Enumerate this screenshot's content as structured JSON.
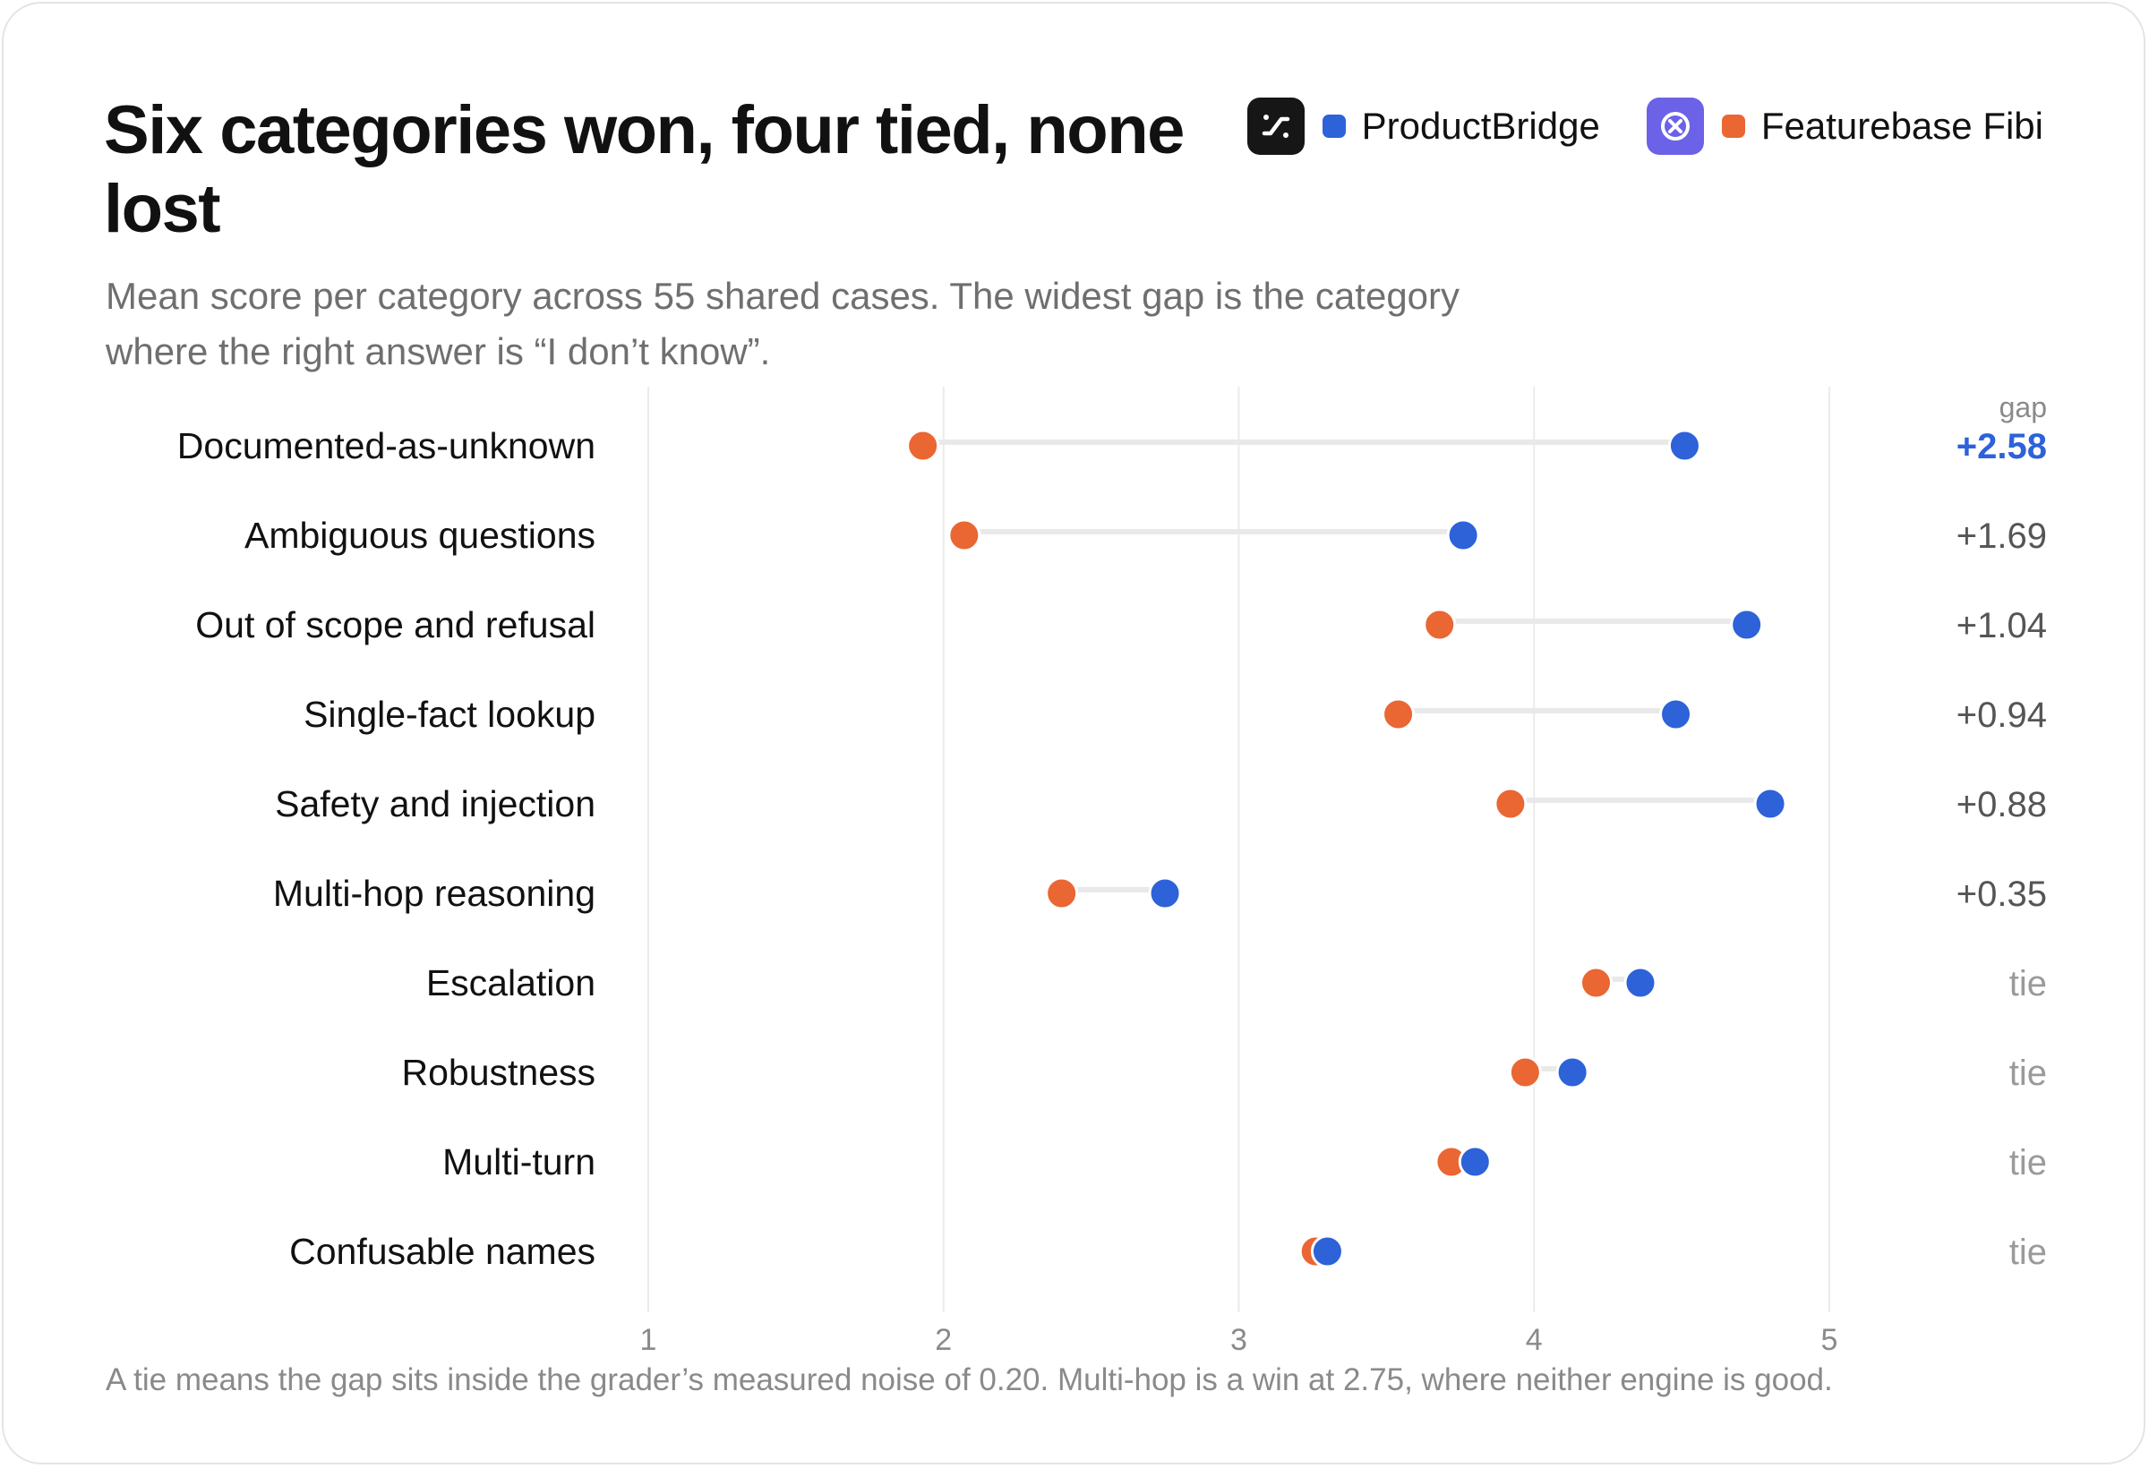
{
  "title": "Six categories won, four tied, none lost",
  "subtitle": "Mean score per category across 55 shared cases. The widest gap is the category where the right answer is “I don’t know”.",
  "footnote": "A tie means the gap sits inside the grader’s measured noise of 0.20. Multi-hop is a win at 2.75, where neither engine is good.",
  "legend": [
    {
      "name": "ProductBridge",
      "color": "#2d62d8",
      "logo_icon": "productbridge-logo-icon"
    },
    {
      "name": "Featurebase Fibi",
      "color": "#ea6633",
      "logo_icon": "featurebase-logo-icon"
    }
  ],
  "chart_data": {
    "type": "dumbbell",
    "xlim": [
      1,
      5
    ],
    "xticks": [
      "1",
      "2",
      "3",
      "4",
      "5"
    ],
    "gap_header": "gap",
    "series": [
      {
        "name": "ProductBridge",
        "color": "#2d62d8"
      },
      {
        "name": "Featurebase Fibi",
        "color": "#ea6633"
      }
    ],
    "rows": [
      {
        "category": "Documented-as-unknown",
        "productbridge": 4.51,
        "featurebase": 1.93,
        "gap": "+2.58",
        "highlight": true
      },
      {
        "category": "Ambiguous questions",
        "productbridge": 3.76,
        "featurebase": 2.07,
        "gap": "+1.69"
      },
      {
        "category": "Out of scope and refusal",
        "productbridge": 4.72,
        "featurebase": 3.68,
        "gap": "+1.04"
      },
      {
        "category": "Single-fact lookup",
        "productbridge": 4.48,
        "featurebase": 3.54,
        "gap": "+0.94"
      },
      {
        "category": "Safety and injection",
        "productbridge": 4.8,
        "featurebase": 3.92,
        "gap": "+0.88"
      },
      {
        "category": "Multi-hop reasoning",
        "productbridge": 2.75,
        "featurebase": 2.4,
        "gap": "+0.35"
      },
      {
        "category": "Escalation",
        "productbridge": 4.36,
        "featurebase": 4.21,
        "gap": "tie"
      },
      {
        "category": "Robustness",
        "productbridge": 4.13,
        "featurebase": 3.97,
        "gap": "tie"
      },
      {
        "category": "Multi-turn",
        "productbridge": 3.8,
        "featurebase": 3.72,
        "gap": "tie"
      },
      {
        "category": "Confusable names",
        "productbridge": 3.3,
        "featurebase": 3.26,
        "gap": "tie"
      }
    ],
    "colors": {
      "gap_win": "#555555",
      "gap_highlight": "#2d62d8",
      "gap_tie": "#9a9a9a",
      "connector": "#e9e9e9",
      "gridline": "#ebebeb"
    }
  }
}
